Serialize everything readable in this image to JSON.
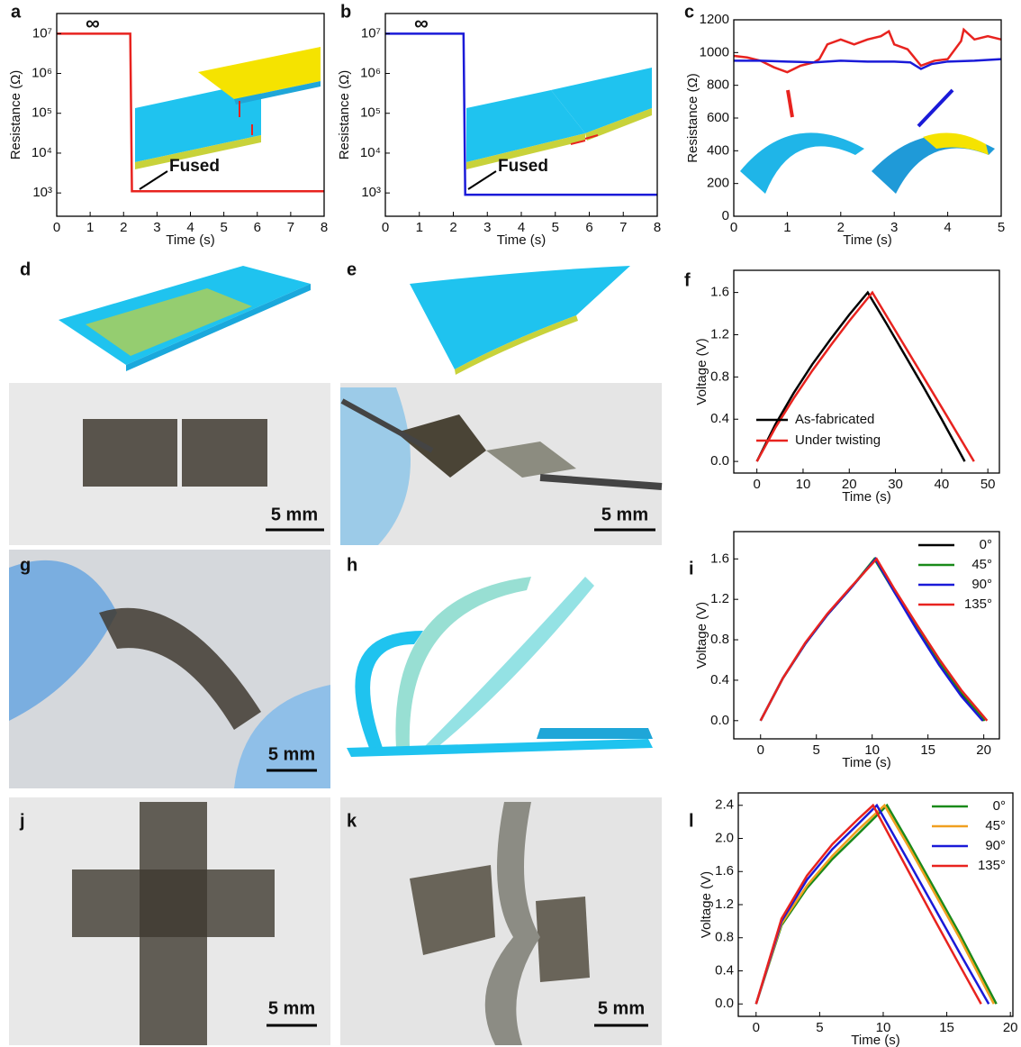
{
  "chart_data": [
    {
      "panel": "a",
      "type": "line",
      "log": true,
      "xlabel": "Time (s)",
      "ylabel": "Resistance (Ω)",
      "xlim": [
        0,
        8
      ],
      "xticks": [
        0,
        1,
        2,
        3,
        4,
        5,
        6,
        7,
        8
      ],
      "ylim": [
        260,
        32000000
      ],
      "yticks": [
        {
          "value": 1000,
          "label": "10³"
        },
        {
          "value": 10000,
          "label": "10⁴"
        },
        {
          "value": 100000,
          "label": "10⁵"
        },
        {
          "value": 1000000,
          "label": "10⁶"
        },
        {
          "value": 10000000,
          "label": "10⁷"
        }
      ],
      "annotations": [
        "∞",
        "Fused"
      ],
      "grid": false,
      "series": [
        {
          "name": null,
          "color": "#e8231f",
          "x": [
            0,
            2.2,
            2.25,
            8
          ],
          "values": [
            10000000,
            10000000,
            1100,
            1100
          ]
        }
      ]
    },
    {
      "panel": "b",
      "type": "line",
      "log": true,
      "xlabel": "Time (s)",
      "ylabel": "Resistance (Ω)",
      "xlim": [
        0,
        8
      ],
      "xticks": [
        0,
        1,
        2,
        3,
        4,
        5,
        6,
        7,
        8
      ],
      "ylim": [
        260,
        32000000
      ],
      "yticks": [
        {
          "value": 1000,
          "label": "10³"
        },
        {
          "value": 10000,
          "label": "10⁴"
        },
        {
          "value": 100000,
          "label": "10⁵"
        },
        {
          "value": 1000000,
          "label": "10⁶"
        },
        {
          "value": 10000000,
          "label": "10⁷"
        }
      ],
      "annotations": [
        "∞",
        "Fused"
      ],
      "grid": false,
      "series": [
        {
          "name": null,
          "color": "#1a1ad8",
          "x": [
            0,
            2.3,
            2.35,
            8
          ],
          "values": [
            10000000,
            10000000,
            900,
            900
          ]
        }
      ]
    },
    {
      "panel": "c",
      "type": "line",
      "log": false,
      "xlabel": "Time (s)",
      "ylabel": "Resistance (Ω)",
      "xlim": [
        0,
        5
      ],
      "xticks": [
        0,
        1,
        2,
        3,
        4,
        5
      ],
      "ylim": [
        0,
        1200
      ],
      "yticks": [
        0,
        200,
        400,
        600,
        800,
        1000,
        1200
      ],
      "grid": false,
      "series": [
        {
          "name": null,
          "color": "#e8231f",
          "x": [
            0,
            0.25,
            0.5,
            0.75,
            1,
            1.25,
            1.5,
            1.6,
            1.75,
            2,
            2.25,
            2.5,
            2.75,
            2.9,
            3,
            3.25,
            3.5,
            3.75,
            4,
            4.25,
            4.3,
            4.5,
            4.75,
            5
          ],
          "values": [
            980,
            970,
            950,
            910,
            880,
            920,
            940,
            960,
            1050,
            1080,
            1050,
            1080,
            1100,
            1130,
            1050,
            1020,
            920,
            950,
            960,
            1070,
            1140,
            1080,
            1100,
            1080
          ]
        },
        {
          "name": null,
          "color": "#1a1ad8",
          "x": [
            0,
            0.5,
            1,
            1.5,
            2,
            2.5,
            3,
            3.3,
            3.5,
            3.7,
            4,
            4.5,
            5
          ],
          "values": [
            950,
            950,
            945,
            940,
            950,
            945,
            945,
            940,
            900,
            930,
            945,
            950,
            960
          ]
        }
      ]
    },
    {
      "panel": "f",
      "type": "line",
      "log": false,
      "xlabel": "Time (s)",
      "ylabel": "Voltage (V)",
      "xlim": [
        -5,
        52.5
      ],
      "xticks": [
        0,
        10,
        20,
        30,
        40,
        50
      ],
      "ylim": [
        -0.11,
        1.81
      ],
      "yticks": [
        {
          "value": 0,
          "label": "0.0"
        },
        0.4,
        0.8,
        1.2,
        1.6
      ],
      "legend": "lower left",
      "grid": false,
      "series": [
        {
          "name": "As-fabricated",
          "color": "#000000",
          "x": [
            0,
            4,
            8,
            12,
            16,
            20,
            24,
            28,
            32,
            36,
            40,
            45
          ],
          "values": [
            0,
            0.35,
            0.65,
            0.92,
            1.16,
            1.39,
            1.6,
            1.31,
            1.01,
            0.71,
            0.4,
            0
          ]
        },
        {
          "name": "Under twisting",
          "color": "#e8231f",
          "x": [
            0,
            4,
            8,
            12,
            16,
            20,
            25,
            29,
            33,
            37,
            41,
            47
          ],
          "values": [
            0,
            0.32,
            0.6,
            0.86,
            1.1,
            1.33,
            1.6,
            1.31,
            1.02,
            0.73,
            0.44,
            0
          ]
        }
      ]
    },
    {
      "panel": "i",
      "type": "line",
      "log": false,
      "xlabel": "Time (s)",
      "ylabel": "Voltage (V)",
      "xlim": [
        -2.4,
        21.4
      ],
      "xticks": [
        0,
        5,
        10,
        15,
        20
      ],
      "ylim": [
        -0.18,
        1.87
      ],
      "yticks": [
        {
          "value": 0,
          "label": "0.0"
        },
        0.4,
        0.8,
        1.2,
        1.6
      ],
      "legend": "upper right",
      "grid": false,
      "series": [
        {
          "name": "0°",
          "color": "#000000",
          "x": [
            0,
            2,
            4,
            6,
            8,
            10.3,
            12,
            14,
            16,
            18,
            20
          ],
          "values": [
            0,
            0.42,
            0.76,
            1.05,
            1.3,
            1.6,
            1.28,
            0.92,
            0.58,
            0.27,
            0
          ]
        },
        {
          "name": "45°",
          "color": "#1a8a1a",
          "x": [
            0,
            2,
            4,
            6,
            8,
            10.2,
            12,
            14,
            16,
            18,
            20.1
          ],
          "values": [
            0,
            0.42,
            0.76,
            1.05,
            1.3,
            1.6,
            1.27,
            0.92,
            0.58,
            0.28,
            0
          ]
        },
        {
          "name": "90°",
          "color": "#1a1ad8",
          "x": [
            0,
            2,
            4,
            6,
            8,
            10.3,
            12,
            14,
            16,
            18,
            19.9
          ],
          "values": [
            0,
            0.42,
            0.76,
            1.05,
            1.3,
            1.6,
            1.27,
            0.9,
            0.55,
            0.24,
            0
          ]
        },
        {
          "name": "135°",
          "color": "#e8231f",
          "x": [
            0,
            2,
            4,
            6,
            8,
            10.4,
            12,
            14,
            16,
            18,
            20.3
          ],
          "values": [
            0,
            0.42,
            0.77,
            1.06,
            1.31,
            1.6,
            1.3,
            0.95,
            0.61,
            0.3,
            0
          ]
        }
      ]
    },
    {
      "panel": "l",
      "type": "line",
      "log": false,
      "xlabel": "Time (s)",
      "ylabel": "Voltage (V)",
      "xlim": [
        -1.4,
        20.2
      ],
      "xticks": [
        0,
        5,
        10,
        15,
        20
      ],
      "ylim": [
        -0.15,
        2.55
      ],
      "yticks": [
        {
          "value": 0,
          "label": "0.0"
        },
        0.4,
        0.8,
        1.2,
        1.6,
        {
          "value": 2,
          "label": "2.0"
        },
        2.4
      ],
      "legend": "upper right",
      "grid": false,
      "series": [
        {
          "name": "0°",
          "color": "#1a8a1a",
          "x": [
            0,
            2,
            4,
            6,
            8,
            10.3,
            12,
            14,
            16,
            18.9
          ],
          "values": [
            0,
            0.95,
            1.4,
            1.75,
            2.05,
            2.4,
            1.95,
            1.4,
            0.85,
            0
          ]
        },
        {
          "name": "45°",
          "color": "#f0a020",
          "x": [
            0,
            2,
            4,
            6,
            8,
            10.1,
            12,
            14,
            16,
            18.7
          ],
          "values": [
            0,
            0.97,
            1.43,
            1.79,
            2.1,
            2.4,
            1.9,
            1.35,
            0.8,
            0
          ]
        },
        {
          "name": "90°",
          "color": "#1a1ad8",
          "x": [
            0,
            2,
            4,
            6,
            8,
            9.5,
            12,
            14,
            16,
            18.3
          ],
          "values": [
            0,
            1.0,
            1.5,
            1.87,
            2.17,
            2.4,
            1.72,
            1.17,
            0.62,
            0
          ]
        },
        {
          "name": "135°",
          "color": "#e8231f",
          "x": [
            0,
            2,
            4,
            6,
            8,
            9.2,
            12,
            14,
            16,
            17.7
          ],
          "values": [
            0,
            1.03,
            1.55,
            1.93,
            2.23,
            2.4,
            1.6,
            1.03,
            0.47,
            0
          ]
        }
      ]
    }
  ],
  "figure_panels": [
    {
      "panel": "d",
      "scale_bar": "5 mm"
    },
    {
      "panel": "e",
      "scale_bar": "5 mm"
    },
    {
      "panel": "g",
      "scale_bar": "5 mm"
    },
    {
      "panel": "h"
    },
    {
      "panel": "j",
      "scale_bar": "5 mm"
    },
    {
      "panel": "k",
      "scale_bar": "5 mm"
    }
  ]
}
